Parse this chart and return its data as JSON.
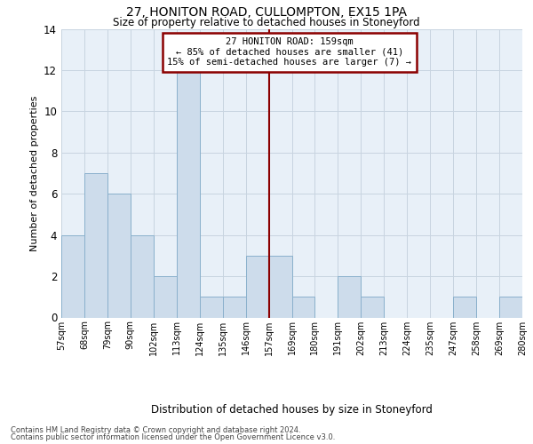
{
  "title": "27, HONITON ROAD, CULLOMPTON, EX15 1PA",
  "subtitle": "Size of property relative to detached houses in Stoneyford",
  "xlabel_bottom": "Distribution of detached houses by size in Stoneyford",
  "ylabel": "Number of detached properties",
  "footer_line1": "Contains HM Land Registry data © Crown copyright and database right 2024.",
  "footer_line2": "Contains public sector information licensed under the Open Government Licence v3.0.",
  "annotation_title": "27 HONITON ROAD: 159sqm",
  "annotation_line2": "← 85% of detached houses are smaller (41)",
  "annotation_line3": "15% of semi-detached houses are larger (7) →",
  "bin_labels": [
    "57sqm",
    "68sqm",
    "79sqm",
    "90sqm",
    "102sqm",
    "113sqm",
    "124sqm",
    "135sqm",
    "146sqm",
    "157sqm",
    "169sqm",
    "180sqm",
    "191sqm",
    "202sqm",
    "213sqm",
    "224sqm",
    "235sqm",
    "247sqm",
    "258sqm",
    "269sqm",
    "280sqm"
  ],
  "counts": [
    4,
    7,
    6,
    4,
    2,
    12,
    1,
    1,
    3,
    3,
    1,
    0,
    2,
    1,
    0,
    0,
    0,
    1,
    0,
    1
  ],
  "n_bins": 20,
  "vline_bin_index": 9,
  "bar_color": "#cddceb",
  "bar_edge_color": "#8ab0cc",
  "vline_color": "#8b0000",
  "annotation_box_color": "#8b0000",
  "background_color": "#ffffff",
  "axes_bg_color": "#e8f0f8",
  "grid_color": "#c8d4e0",
  "ylim": [
    0,
    14
  ],
  "yticks": [
    0,
    2,
    4,
    6,
    8,
    10,
    12,
    14
  ]
}
